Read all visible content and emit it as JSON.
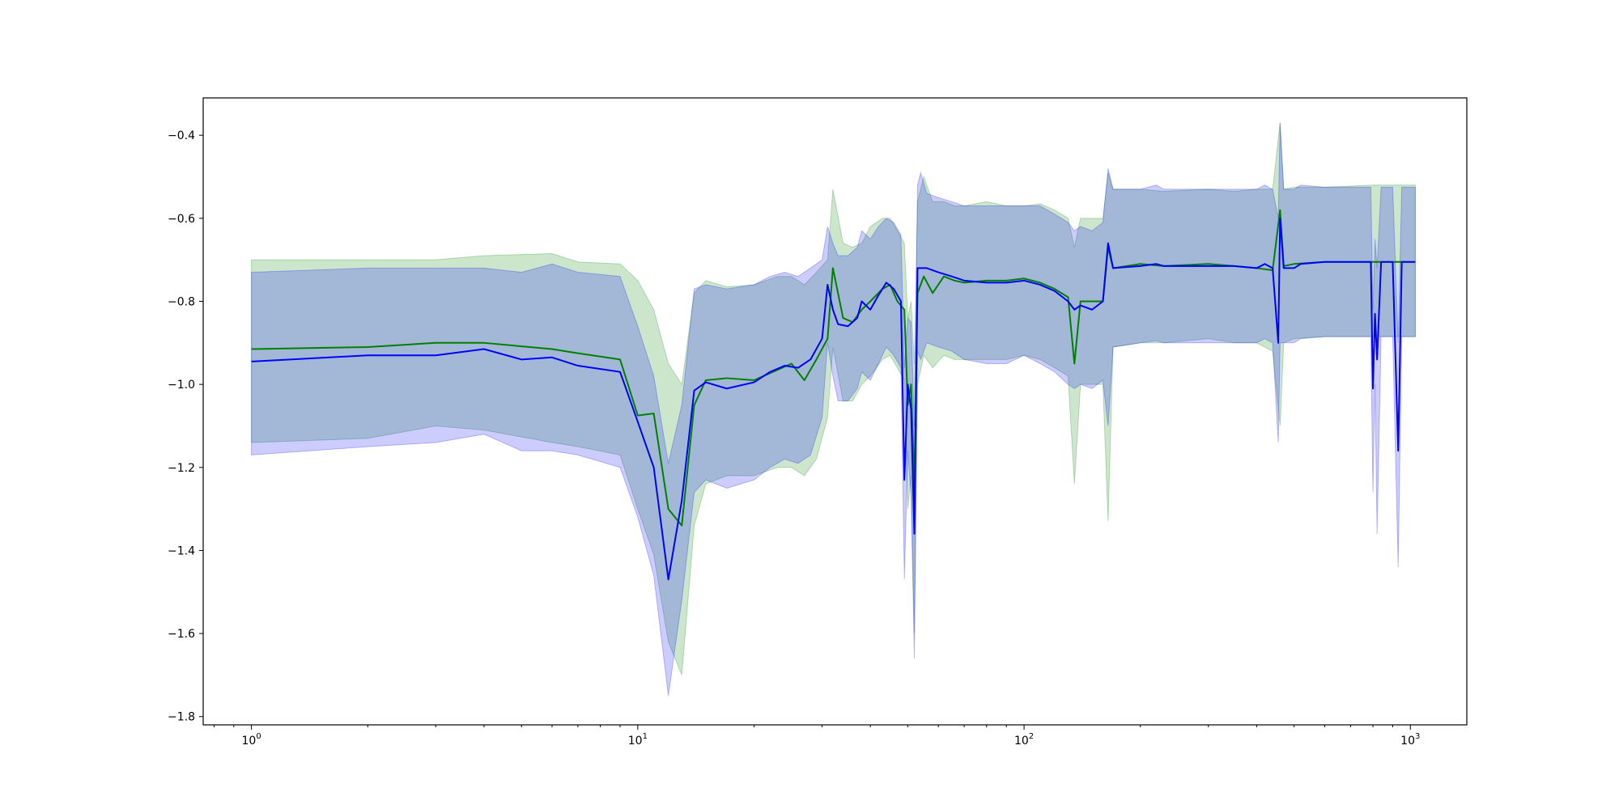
{
  "chart_data": {
    "type": "line",
    "title": "",
    "xlabel": "",
    "ylabel": "",
    "x_scale": "log",
    "xlim": [
      0.75,
      1400
    ],
    "ylim": [
      -1.82,
      -0.31
    ],
    "grid": false,
    "x_ticks": [
      {
        "value": 1,
        "base": "10",
        "exp": "0"
      },
      {
        "value": 10,
        "base": "10",
        "exp": "1"
      },
      {
        "value": 100,
        "base": "10",
        "exp": "2"
      },
      {
        "value": 1000,
        "base": "10",
        "exp": "3"
      }
    ],
    "y_ticks": [
      -0.4,
      -0.6,
      -0.8,
      -1.0,
      -1.2,
      -1.4,
      -1.6,
      -1.8
    ],
    "y_tick_labels": [
      "−0.4",
      "−0.6",
      "−0.8",
      "−1.0",
      "−1.2",
      "−1.4",
      "−1.6",
      "−1.8"
    ],
    "series": [
      {
        "color": "#008000",
        "band_color": "#008000",
        "x": [
          1,
          2,
          3,
          4,
          6,
          7,
          9,
          10,
          11,
          12,
          13,
          14,
          15,
          17,
          20,
          23,
          25,
          27,
          29,
          31,
          32,
          34,
          36,
          38,
          40,
          43,
          45,
          47,
          49,
          50,
          51,
          52,
          53,
          55,
          58,
          62,
          66,
          70,
          80,
          90,
          100,
          110,
          120,
          130,
          135,
          140,
          150,
          160,
          165,
          170,
          200,
          230,
          300,
          350,
          400,
          440,
          460,
          470,
          500,
          600,
          800,
          1000,
          1030
        ],
        "y": [
          -0.915,
          -0.91,
          -0.9,
          -0.9,
          -0.915,
          -0.925,
          -0.94,
          -1.075,
          -1.07,
          -1.3,
          -1.34,
          -1.05,
          -0.99,
          -0.985,
          -0.99,
          -0.965,
          -0.95,
          -0.99,
          -0.94,
          -0.89,
          -0.72,
          -0.84,
          -0.85,
          -0.82,
          -0.8,
          -0.77,
          -0.76,
          -0.8,
          -0.82,
          -1.05,
          -1.0,
          -1.25,
          -0.78,
          -0.74,
          -0.78,
          -0.74,
          -0.75,
          -0.755,
          -0.75,
          -0.75,
          -0.745,
          -0.755,
          -0.77,
          -0.79,
          -0.95,
          -0.8,
          -0.8,
          -0.8,
          -0.67,
          -0.72,
          -0.71,
          -0.715,
          -0.71,
          -0.715,
          -0.72,
          -0.725,
          -0.58,
          -0.715,
          -0.71,
          -0.705,
          -0.705,
          -0.705,
          -0.705
        ],
        "upper": [
          -0.7,
          -0.7,
          -0.7,
          -0.69,
          -0.685,
          -0.705,
          -0.71,
          -0.75,
          -0.82,
          -0.95,
          -1.0,
          -0.78,
          -0.75,
          -0.765,
          -0.76,
          -0.74,
          -0.74,
          -0.76,
          -0.73,
          -0.7,
          -0.53,
          -0.66,
          -0.67,
          -0.66,
          -0.62,
          -0.6,
          -0.6,
          -0.63,
          -0.66,
          -0.84,
          -0.8,
          -0.95,
          -0.56,
          -0.5,
          -0.56,
          -0.56,
          -0.57,
          -0.57,
          -0.56,
          -0.57,
          -0.57,
          -0.565,
          -0.58,
          -0.6,
          -0.67,
          -0.6,
          -0.6,
          -0.6,
          -0.49,
          -0.53,
          -0.53,
          -0.535,
          -0.53,
          -0.535,
          -0.53,
          -0.53,
          -0.37,
          -0.53,
          -0.525,
          -0.525,
          -0.52,
          -0.52,
          -0.52
        ],
        "lower": [
          -1.14,
          -1.13,
          -1.1,
          -1.11,
          -1.14,
          -1.15,
          -1.17,
          -1.3,
          -1.41,
          -1.62,
          -1.7,
          -1.34,
          -1.24,
          -1.22,
          -1.22,
          -1.2,
          -1.2,
          -1.22,
          -1.18,
          -1.08,
          -0.91,
          -1.04,
          -1.04,
          -1.0,
          -0.98,
          -0.94,
          -0.93,
          -0.96,
          -0.99,
          -1.3,
          -1.22,
          -1.6,
          -1.0,
          -0.93,
          -0.96,
          -0.93,
          -0.94,
          -0.94,
          -0.94,
          -0.94,
          -0.93,
          -0.94,
          -0.96,
          -0.98,
          -1.24,
          -1.0,
          -1.0,
          -1.0,
          -1.33,
          -0.91,
          -0.9,
          -0.9,
          -0.89,
          -0.9,
          -0.9,
          -0.92,
          -1.1,
          -0.9,
          -0.89,
          -0.885,
          -0.885,
          -0.885,
          -0.885
        ]
      },
      {
        "color": "#0000ff",
        "band_color": "#0000ff",
        "x": [
          1,
          2,
          3,
          4,
          5,
          6,
          7,
          9,
          10,
          11,
          12,
          13,
          14,
          15,
          17,
          20,
          22,
          24,
          26,
          28,
          30,
          31,
          32,
          33,
          35,
          37,
          38,
          40,
          42,
          44,
          46,
          48,
          49,
          50,
          51,
          52,
          53,
          54,
          56,
          60,
          65,
          70,
          80,
          90,
          100,
          110,
          120,
          130,
          135,
          140,
          150,
          160,
          165,
          170,
          200,
          220,
          230,
          300,
          350,
          400,
          420,
          440,
          455,
          460,
          470,
          500,
          520,
          600,
          700,
          790,
          800,
          810,
          820,
          840,
          860,
          900,
          930,
          950,
          1000,
          1030
        ],
        "y": [
          -0.945,
          -0.93,
          -0.93,
          -0.915,
          -0.94,
          -0.935,
          -0.955,
          -0.97,
          -1.09,
          -1.2,
          -1.47,
          -1.28,
          -1.015,
          -0.995,
          -1.01,
          -0.995,
          -0.97,
          -0.955,
          -0.96,
          -0.94,
          -0.89,
          -0.76,
          -0.82,
          -0.855,
          -0.86,
          -0.84,
          -0.8,
          -0.82,
          -0.785,
          -0.755,
          -0.77,
          -0.8,
          -1.23,
          -1.0,
          -1.06,
          -1.36,
          -0.72,
          -0.72,
          -0.72,
          -0.73,
          -0.74,
          -0.75,
          -0.755,
          -0.755,
          -0.75,
          -0.76,
          -0.775,
          -0.8,
          -0.82,
          -0.81,
          -0.82,
          -0.8,
          -0.66,
          -0.72,
          -0.715,
          -0.71,
          -0.715,
          -0.715,
          -0.715,
          -0.72,
          -0.71,
          -0.72,
          -0.9,
          -0.6,
          -0.72,
          -0.72,
          -0.71,
          -0.705,
          -0.705,
          -0.705,
          -1.01,
          -0.83,
          -0.94,
          -0.705,
          -0.705,
          -0.705,
          -1.16,
          -0.705,
          -0.705,
          -0.705
        ],
        "upper": [
          -0.73,
          -0.72,
          -0.72,
          -0.72,
          -0.73,
          -0.71,
          -0.73,
          -0.74,
          -0.86,
          -0.98,
          -1.19,
          -1.05,
          -0.77,
          -0.76,
          -0.77,
          -0.76,
          -0.74,
          -0.73,
          -0.74,
          -0.72,
          -0.7,
          -0.62,
          -0.66,
          -0.69,
          -0.69,
          -0.67,
          -0.63,
          -0.65,
          -0.62,
          -0.6,
          -0.61,
          -0.64,
          -0.96,
          -0.84,
          -0.85,
          -1.1,
          -0.52,
          -0.49,
          -0.54,
          -0.55,
          -0.56,
          -0.57,
          -0.57,
          -0.57,
          -0.57,
          -0.57,
          -0.59,
          -0.61,
          -0.63,
          -0.62,
          -0.63,
          -0.61,
          -0.48,
          -0.53,
          -0.53,
          -0.52,
          -0.53,
          -0.53,
          -0.53,
          -0.53,
          -0.52,
          -0.53,
          -0.6,
          -0.37,
          -0.53,
          -0.53,
          -0.52,
          -0.525,
          -0.525,
          -0.525,
          -0.82,
          -0.65,
          -0.72,
          -0.525,
          -0.525,
          -0.525,
          -0.9,
          -0.525,
          -0.525,
          -0.525
        ],
        "lower": [
          -1.17,
          -1.15,
          -1.14,
          -1.12,
          -1.16,
          -1.16,
          -1.17,
          -1.2,
          -1.32,
          -1.46,
          -1.75,
          -1.52,
          -1.26,
          -1.23,
          -1.25,
          -1.23,
          -1.2,
          -1.18,
          -1.19,
          -1.17,
          -1.08,
          -0.9,
          -0.98,
          -1.04,
          -1.04,
          -1.01,
          -0.97,
          -0.99,
          -0.95,
          -0.91,
          -0.93,
          -0.96,
          -1.47,
          -1.16,
          -1.27,
          -1.66,
          -0.92,
          -0.94,
          -0.9,
          -0.91,
          -0.92,
          -0.94,
          -0.95,
          -0.95,
          -0.93,
          -0.95,
          -0.97,
          -1.0,
          -1.01,
          -1.0,
          -1.01,
          -0.99,
          -1.1,
          -0.91,
          -0.9,
          -0.895,
          -0.9,
          -0.9,
          -0.9,
          -0.9,
          -0.89,
          -0.9,
          -1.14,
          -0.9,
          -0.9,
          -0.9,
          -0.89,
          -0.885,
          -0.885,
          -0.885,
          -1.26,
          -1.0,
          -1.36,
          -0.885,
          -0.885,
          -0.885,
          -1.44,
          -0.885,
          -0.885,
          -0.885
        ]
      }
    ]
  }
}
